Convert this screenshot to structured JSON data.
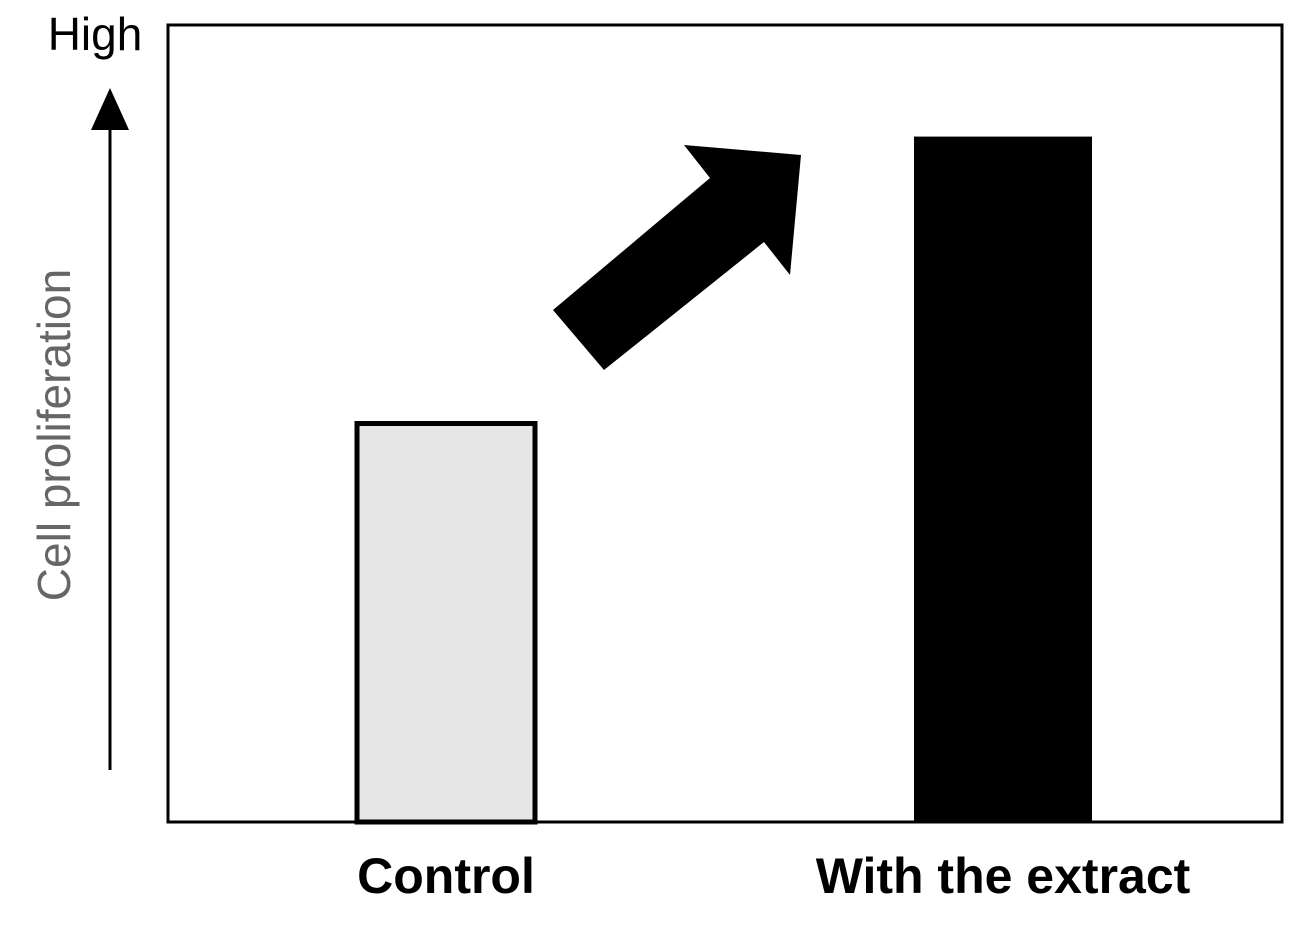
{
  "chart_data": {
    "type": "bar",
    "y_label": "Cell proliferation",
    "y_top_label": "High",
    "categories": [
      "Control",
      "With the extract"
    ],
    "values": [
      50,
      86
    ],
    "colors": [
      "#e6e6e6",
      "#000000"
    ],
    "ylim": [
      0,
      100
    ]
  }
}
